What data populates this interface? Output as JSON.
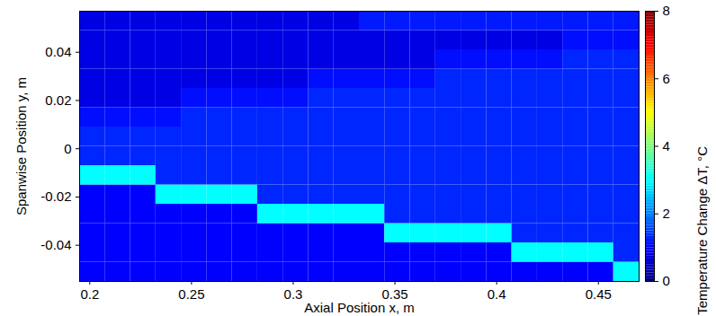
{
  "chart_data": {
    "type": "heatmap",
    "xlabel": "Axial Position x, m",
    "ylabel": "Spanwise Position y, m",
    "xlim": [
      0.195,
      0.47
    ],
    "xticks": [
      0.2,
      0.25,
      0.3,
      0.35,
      0.4,
      0.45
    ],
    "ylim": [
      -0.055,
      0.057
    ],
    "yticks": [
      -0.04,
      -0.02,
      0,
      0.02,
      0.04
    ],
    "x_edges": [
      0.195,
      0.2075,
      0.22,
      0.2325,
      0.245,
      0.2575,
      0.27,
      0.2825,
      0.295,
      0.3075,
      0.32,
      0.3325,
      0.345,
      0.3575,
      0.37,
      0.3825,
      0.395,
      0.4075,
      0.42,
      0.4325,
      0.445,
      0.4575,
      0.47
    ],
    "y_edges": [
      -0.055,
      -0.047,
      -0.039,
      -0.031,
      -0.023,
      -0.015,
      -0.007,
      0.001,
      0.009,
      0.017,
      0.025,
      0.033,
      0.041,
      0.049,
      0.057
    ],
    "values": [
      [
        1.0,
        1.0,
        1.0,
        1.0,
        1.0,
        1.0,
        1.0,
        1.0,
        1.0,
        1.0,
        1.0,
        1.0,
        1.0,
        1.0,
        1.0,
        1.0,
        1.0,
        1.0,
        1.0,
        1.0,
        1.0,
        3.0
      ],
      [
        1.0,
        1.0,
        1.0,
        1.0,
        1.0,
        1.0,
        1.0,
        1.0,
        1.0,
        1.0,
        1.0,
        1.0,
        1.0,
        1.0,
        1.0,
        1.0,
        1.0,
        3.0,
        3.0,
        3.0,
        3.0,
        1.3
      ],
      [
        1.0,
        1.0,
        1.0,
        1.0,
        1.0,
        1.0,
        1.0,
        1.0,
        1.0,
        1.0,
        1.0,
        1.0,
        3.0,
        3.0,
        3.0,
        3.0,
        3.0,
        1.3,
        1.3,
        1.3,
        1.3,
        1.3
      ],
      [
        1.0,
        1.0,
        1.0,
        1.0,
        1.0,
        1.0,
        1.0,
        3.0,
        3.0,
        3.0,
        3.0,
        3.0,
        1.3,
        1.3,
        1.3,
        1.3,
        1.3,
        1.3,
        1.3,
        1.3,
        1.3,
        1.3
      ],
      [
        1.0,
        1.0,
        1.0,
        3.0,
        3.0,
        3.0,
        3.0,
        1.3,
        1.3,
        1.3,
        1.3,
        1.3,
        1.3,
        1.3,
        1.3,
        1.3,
        1.3,
        1.3,
        1.3,
        1.3,
        1.3,
        1.3
      ],
      [
        3.0,
        3.0,
        3.0,
        1.3,
        1.3,
        1.3,
        1.3,
        1.3,
        1.3,
        1.3,
        1.3,
        1.3,
        1.3,
        1.3,
        1.3,
        1.3,
        1.3,
        1.3,
        1.3,
        1.3,
        1.3,
        1.3
      ],
      [
        1.3,
        1.3,
        1.3,
        1.3,
        1.3,
        1.3,
        1.3,
        1.3,
        1.3,
        1.3,
        1.3,
        1.3,
        1.3,
        1.3,
        1.3,
        1.3,
        1.3,
        1.3,
        1.3,
        1.3,
        1.3,
        1.3
      ],
      [
        1.3,
        1.3,
        1.3,
        1.3,
        1.3,
        1.3,
        1.3,
        1.3,
        1.3,
        1.3,
        1.3,
        1.3,
        1.3,
        1.3,
        1.3,
        1.3,
        1.3,
        1.3,
        1.3,
        1.3,
        1.3,
        1.3
      ],
      [
        1.1,
        1.1,
        1.1,
        1.1,
        1.3,
        1.3,
        1.3,
        1.3,
        1.3,
        1.3,
        1.3,
        1.3,
        1.3,
        1.3,
        1.3,
        1.3,
        1.3,
        1.3,
        1.3,
        1.3,
        1.3,
        1.3
      ],
      [
        0.8,
        0.8,
        0.8,
        0.8,
        1.1,
        1.1,
        1.1,
        1.1,
        1.1,
        1.3,
        1.3,
        1.3,
        1.3,
        1.3,
        1.3,
        1.3,
        1.3,
        1.3,
        1.3,
        1.3,
        1.3,
        1.3
      ],
      [
        0.8,
        0.8,
        0.8,
        0.8,
        0.8,
        0.8,
        0.8,
        0.8,
        0.8,
        1.1,
        1.1,
        1.1,
        1.1,
        1.1,
        1.3,
        1.3,
        1.3,
        1.3,
        1.3,
        1.3,
        1.3,
        1.3
      ],
      [
        0.8,
        0.8,
        0.8,
        0.8,
        0.8,
        0.8,
        0.8,
        0.8,
        0.8,
        0.8,
        0.8,
        0.8,
        0.8,
        0.8,
        1.1,
        1.1,
        1.1,
        1.1,
        1.1,
        1.3,
        1.3,
        1.3
      ],
      [
        0.8,
        0.8,
        0.8,
        0.8,
        0.8,
        0.8,
        0.8,
        0.8,
        0.8,
        0.8,
        0.8,
        0.8,
        0.8,
        0.8,
        0.8,
        0.8,
        0.8,
        0.8,
        0.8,
        1.1,
        1.1,
        1.1
      ],
      [
        0.8,
        0.8,
        0.8,
        0.8,
        0.8,
        0.8,
        0.8,
        0.8,
        0.8,
        0.8,
        0.8,
        1.2,
        1.2,
        1.2,
        1.2,
        1.2,
        1.2,
        1.2,
        1.2,
        1.2,
        1.2,
        1.2
      ]
    ],
    "colorbar": {
      "label": "Temperature Change ΔT, °C",
      "range": [
        0,
        8
      ],
      "ticks": [
        0,
        2,
        4,
        6,
        8
      ]
    }
  }
}
